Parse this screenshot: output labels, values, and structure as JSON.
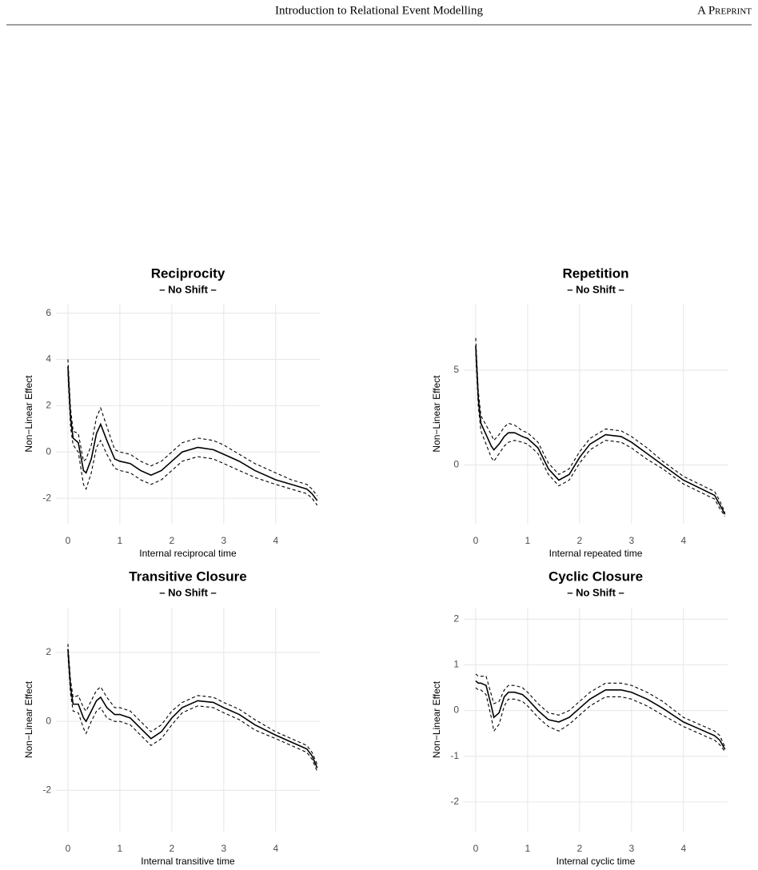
{
  "header": {
    "title": "Introduction to Relational Event Modelling",
    "label": "A Preprint"
  },
  "chart_data": [
    {
      "type": "line",
      "title": "Reciprocity",
      "subtitle": "– No Shift –",
      "xlabel": "Internal reciprocal time",
      "ylabel": "Non−Linear Effect",
      "x": [
        0,
        0.05,
        0.1,
        0.2,
        0.3,
        0.35,
        0.45,
        0.55,
        0.63,
        0.75,
        0.9,
        1.0,
        1.2,
        1.4,
        1.6,
        1.8,
        2.0,
        2.2,
        2.5,
        2.8,
        3.0,
        3.3,
        3.6,
        4.0,
        4.3,
        4.6,
        4.7,
        4.8
      ],
      "series": [
        {
          "color": "#000000",
          "dashed": false,
          "values": [
            3.7,
            1.5,
            0.6,
            0.4,
            -0.8,
            -0.9,
            -0.3,
            0.8,
            1.2,
            0.5,
            -0.3,
            -0.4,
            -0.5,
            -0.8,
            -1.0,
            -0.8,
            -0.4,
            0.0,
            0.2,
            0.1,
            -0.1,
            -0.4,
            -0.8,
            -1.2,
            -1.4,
            -1.6,
            -1.8,
            -2.1
          ]
        },
        {
          "color": "#000000",
          "dashed": true,
          "values": [
            4.0,
            1.9,
            0.9,
            0.8,
            -0.4,
            -0.3,
            0.3,
            1.5,
            1.9,
            1.1,
            0.1,
            0.0,
            -0.1,
            -0.4,
            -0.6,
            -0.4,
            0.0,
            0.4,
            0.6,
            0.5,
            0.3,
            -0.1,
            -0.5,
            -0.9,
            -1.2,
            -1.4,
            -1.6,
            -1.9
          ]
        },
        {
          "color": "#000000",
          "dashed": true,
          "values": [
            3.4,
            1.1,
            0.3,
            0.0,
            -1.4,
            -1.6,
            -0.9,
            0.2,
            0.5,
            -0.1,
            -0.7,
            -0.8,
            -0.9,
            -1.2,
            -1.4,
            -1.2,
            -0.8,
            -0.4,
            -0.2,
            -0.3,
            -0.5,
            -0.8,
            -1.1,
            -1.4,
            -1.6,
            -1.8,
            -2.0,
            -2.3
          ]
        }
      ],
      "xlim": [
        -0.23,
        4.85
      ],
      "xticks": [
        0,
        1,
        2,
        3,
        4
      ],
      "ylim": [
        -3.1,
        6.4
      ],
      "yticks": [
        -2,
        0,
        2,
        4,
        6
      ],
      "grid": true
    },
    {
      "type": "line",
      "title": "Repetition",
      "subtitle": "– No Shift –",
      "xlabel": "Internal repeated time",
      "ylabel": "Non−Linear Effect",
      "x": [
        0,
        0.05,
        0.1,
        0.2,
        0.3,
        0.35,
        0.45,
        0.55,
        0.63,
        0.75,
        0.9,
        1.0,
        1.2,
        1.4,
        1.6,
        1.8,
        2.0,
        2.2,
        2.5,
        2.8,
        3.0,
        3.3,
        3.6,
        4.0,
        4.3,
        4.6,
        4.7,
        4.8
      ],
      "series": [
        {
          "color": "#000000",
          "dashed": false,
          "values": [
            6.3,
            3.5,
            2.2,
            1.6,
            1.0,
            0.8,
            1.1,
            1.5,
            1.7,
            1.7,
            1.5,
            1.4,
            0.9,
            -0.2,
            -0.8,
            -0.5,
            0.4,
            1.1,
            1.6,
            1.5,
            1.2,
            0.6,
            0.0,
            -0.8,
            -1.2,
            -1.6,
            -2.1,
            -2.6
          ]
        },
        {
          "color": "#000000",
          "dashed": true,
          "values": [
            6.7,
            3.9,
            2.6,
            2.1,
            1.6,
            1.3,
            1.6,
            2.0,
            2.2,
            2.1,
            1.8,
            1.7,
            1.2,
            0.1,
            -0.5,
            -0.2,
            0.7,
            1.4,
            1.9,
            1.8,
            1.5,
            0.9,
            0.2,
            -0.6,
            -1.0,
            -1.4,
            -1.9,
            -2.5
          ]
        },
        {
          "color": "#000000",
          "dashed": true,
          "values": [
            5.9,
            3.1,
            1.8,
            1.1,
            0.4,
            0.2,
            0.6,
            1.0,
            1.2,
            1.3,
            1.2,
            1.1,
            0.6,
            -0.5,
            -1.1,
            -0.8,
            0.1,
            0.8,
            1.3,
            1.2,
            0.9,
            0.3,
            -0.2,
            -1.0,
            -1.4,
            -1.8,
            -2.3,
            -2.7
          ]
        }
      ],
      "xlim": [
        -0.23,
        4.85
      ],
      "xticks": [
        0,
        1,
        2,
        3,
        4
      ],
      "ylim": [
        -3.1,
        8.5
      ],
      "yticks": [
        0,
        5
      ],
      "grid": true
    },
    {
      "type": "line",
      "title": "Transitive Closure",
      "subtitle": "– No Shift –",
      "xlabel": "Internal transitive time",
      "ylabel": "Non−Linear Effect",
      "x": [
        0,
        0.05,
        0.1,
        0.2,
        0.3,
        0.35,
        0.45,
        0.55,
        0.63,
        0.75,
        0.9,
        1.0,
        1.2,
        1.4,
        1.6,
        1.8,
        2.0,
        2.2,
        2.5,
        2.8,
        3.0,
        3.3,
        3.6,
        4.0,
        4.3,
        4.6,
        4.7,
        4.8
      ],
      "series": [
        {
          "color": "#000000",
          "dashed": false,
          "values": [
            2.1,
            1.0,
            0.5,
            0.5,
            0.1,
            0.0,
            0.3,
            0.6,
            0.7,
            0.4,
            0.2,
            0.2,
            0.1,
            -0.2,
            -0.5,
            -0.3,
            0.1,
            0.4,
            0.6,
            0.55,
            0.4,
            0.2,
            -0.1,
            -0.4,
            -0.6,
            -0.8,
            -1.0,
            -1.35
          ]
        },
        {
          "color": "#000000",
          "dashed": true,
          "values": [
            2.25,
            1.2,
            0.7,
            0.75,
            0.4,
            0.3,
            0.6,
            0.9,
            1.0,
            0.7,
            0.4,
            0.4,
            0.3,
            0.0,
            -0.3,
            -0.1,
            0.3,
            0.55,
            0.75,
            0.7,
            0.55,
            0.35,
            0.05,
            -0.3,
            -0.5,
            -0.7,
            -0.9,
            -1.25
          ]
        },
        {
          "color": "#000000",
          "dashed": true,
          "values": [
            1.95,
            0.8,
            0.3,
            0.25,
            -0.2,
            -0.35,
            0.0,
            0.3,
            0.4,
            0.1,
            0.0,
            0.0,
            -0.1,
            -0.4,
            -0.7,
            -0.5,
            -0.1,
            0.25,
            0.45,
            0.4,
            0.25,
            0.05,
            -0.25,
            -0.5,
            -0.7,
            -0.9,
            -1.1,
            -1.45
          ]
        }
      ],
      "xlim": [
        -0.23,
        4.85
      ],
      "xticks": [
        0,
        1,
        2,
        3,
        4
      ],
      "ylim": [
        -3.2,
        3.3
      ],
      "yticks": [
        -2,
        0,
        2
      ],
      "grid": true
    },
    {
      "type": "line",
      "title": "Cyclic Closure",
      "subtitle": "– No Shift –",
      "xlabel": "Internal cyclic time",
      "ylabel": "Non−Linear Effect",
      "x": [
        0,
        0.05,
        0.1,
        0.2,
        0.3,
        0.35,
        0.45,
        0.55,
        0.63,
        0.75,
        0.9,
        1.0,
        1.2,
        1.4,
        1.6,
        1.8,
        2.0,
        2.2,
        2.5,
        2.8,
        3.0,
        3.3,
        3.6,
        4.0,
        4.3,
        4.6,
        4.7,
        4.8
      ],
      "series": [
        {
          "color": "#000000",
          "dashed": false,
          "values": [
            0.65,
            0.6,
            0.6,
            0.55,
            0.1,
            -0.15,
            -0.05,
            0.3,
            0.4,
            0.4,
            0.35,
            0.25,
            0.0,
            -0.2,
            -0.25,
            -0.15,
            0.05,
            0.25,
            0.45,
            0.45,
            0.4,
            0.25,
            0.05,
            -0.25,
            -0.4,
            -0.55,
            -0.65,
            -0.85
          ]
        },
        {
          "color": "#000000",
          "dashed": true,
          "values": [
            0.8,
            0.75,
            0.75,
            0.75,
            0.35,
            0.15,
            0.2,
            0.45,
            0.55,
            0.55,
            0.5,
            0.4,
            0.15,
            -0.05,
            -0.1,
            0.0,
            0.2,
            0.4,
            0.6,
            0.6,
            0.55,
            0.4,
            0.2,
            -0.15,
            -0.3,
            -0.45,
            -0.55,
            -0.8
          ]
        },
        {
          "color": "#000000",
          "dashed": true,
          "values": [
            0.5,
            0.45,
            0.45,
            0.35,
            -0.15,
            -0.45,
            -0.3,
            0.1,
            0.25,
            0.25,
            0.2,
            0.1,
            -0.15,
            -0.35,
            -0.45,
            -0.3,
            -0.1,
            0.1,
            0.3,
            0.3,
            0.25,
            0.1,
            -0.1,
            -0.35,
            -0.5,
            -0.65,
            -0.75,
            -0.9
          ]
        }
      ],
      "xlim": [
        -0.23,
        4.85
      ],
      "xticks": [
        0,
        1,
        2,
        3,
        4
      ],
      "ylim": [
        -2.65,
        2.25
      ],
      "yticks": [
        -2,
        -1,
        0,
        1,
        2
      ],
      "grid": true
    }
  ]
}
